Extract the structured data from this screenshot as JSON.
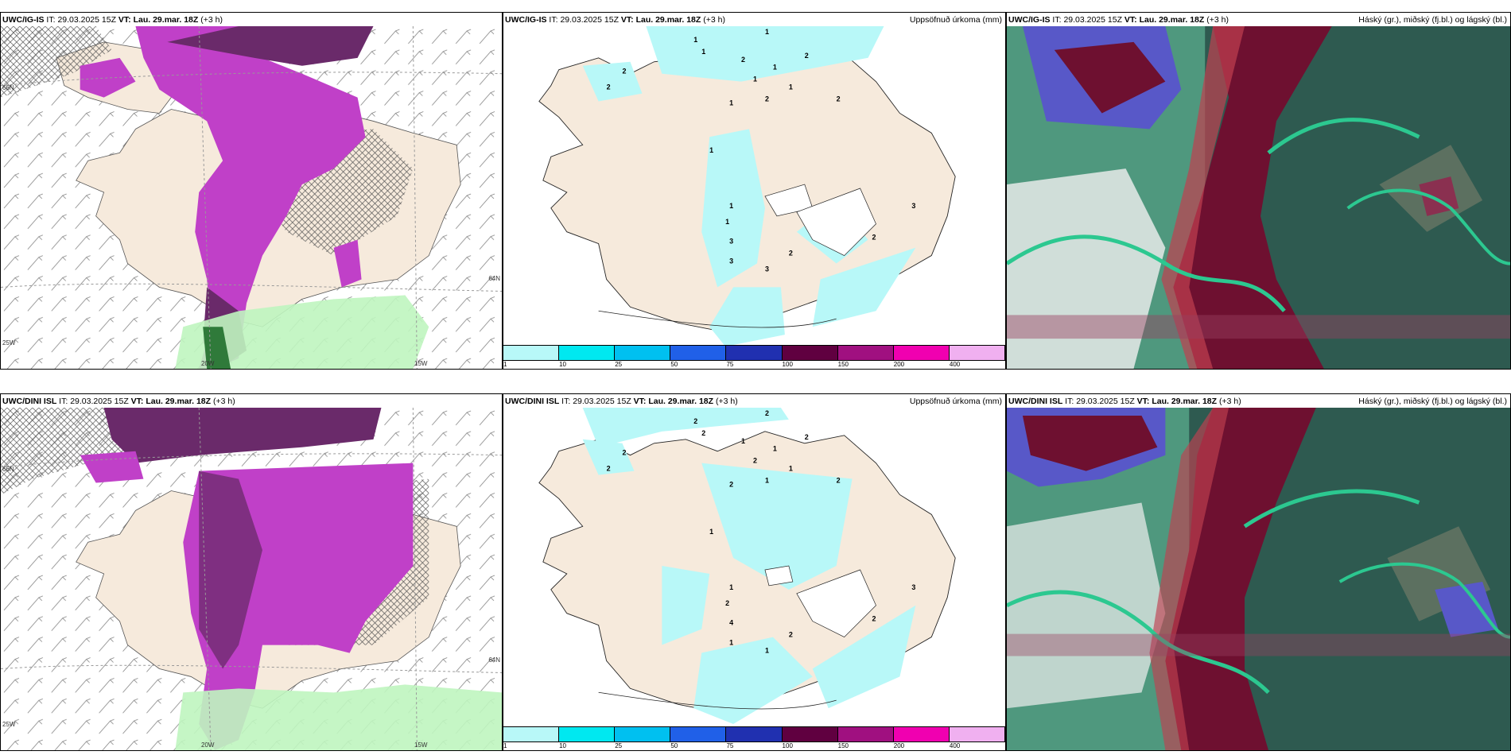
{
  "rows": [
    {
      "model": "UWC/IG-IS",
      "it_label": "IT:",
      "it_value": "29.03.2025 15Z",
      "vt_label": "VT:",
      "vt_value": "Lau. 29.mar. 18Z",
      "step": "(+3 h)"
    },
    {
      "model": "UWC/DINI ISL",
      "it_label": "IT:",
      "it_value": "29.03.2025 15Z",
      "vt_label": "VT:",
      "vt_value": "Lau. 29.mar. 18Z",
      "step": "(+3 h)"
    }
  ],
  "titles": {
    "precip": "Uppsöfnuð úrkoma (mm)",
    "cloud": "Háský (gr.), miðský (fj.bl.) og lágský (bl.)"
  },
  "grid_labels": {
    "lon_20w": "20W",
    "lon_15w": "15W",
    "lon_25w": "25W",
    "lat_66n": "66N",
    "lat_64n": "64N"
  },
  "colorbar": {
    "ticks": [
      "1",
      "10",
      "25",
      "50",
      "75",
      "100",
      "150",
      "200",
      "400"
    ],
    "colors": [
      "#b8f8f8",
      "#00e8f0",
      "#00c0f0",
      "#2060e8",
      "#2030b0",
      "#600040",
      "#a01080",
      "#f000b0",
      "#f0b0f0"
    ]
  },
  "precip_labels_top": [
    "1",
    "1",
    "1",
    "2",
    "1",
    "1",
    "2",
    "1",
    "2",
    "1",
    "2",
    "1",
    "1",
    "1",
    "3",
    "3",
    "3",
    "2",
    "2",
    "3",
    "2",
    "2"
  ],
  "precip_labels_bottom": [
    "2",
    "2",
    "2",
    "1",
    "1",
    "2",
    "2",
    "1",
    "1",
    "2",
    "2",
    "1",
    "1",
    "2",
    "4",
    "1",
    "1",
    "2",
    "2",
    "3",
    "2",
    "2"
  ],
  "colors": {
    "land": "#f6eadc",
    "precip_light": "#b8f8f8",
    "precip_magenta": "#c040c8",
    "precip_dark": "#6a2a6a",
    "cloud_high": "#6e1030",
    "cloud_mid": "#2e5a50",
    "cloud_low": "#5858c8",
    "cloud_green": "#2cc890"
  }
}
